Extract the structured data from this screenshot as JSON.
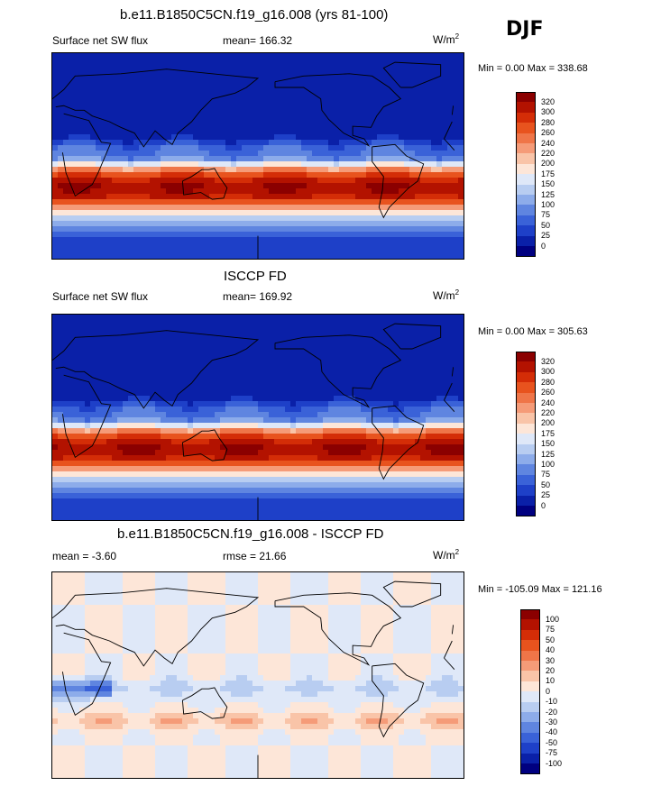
{
  "season": "DJF",
  "panels": [
    {
      "id": "model",
      "title": "b.e11.B1850C5CN.f19_g16.008 (yrs 81-100)",
      "left_label": "Surface net SW flux",
      "center_label": "mean= 166.32",
      "units": "W/m",
      "units_sup": "2",
      "minmax": "Min =   0.00 Max = 338.68",
      "colorbar_labels": [
        "320",
        "300",
        "280",
        "260",
        "240",
        "220",
        "200",
        "175",
        "150",
        "125",
        "100",
        "75",
        "50",
        "25",
        "0"
      ],
      "colorbar_colors": [
        "#8b0000",
        "#b31200",
        "#d42d07",
        "#e8531e",
        "#ef7548",
        "#f59b78",
        "#f9c4a8",
        "#fde6d8",
        "#dfe8f8",
        "#b8cdf1",
        "#8dacea",
        "#5f85e0",
        "#3a62d8",
        "#1e40c8",
        "#0a20a8",
        "#000080"
      ]
    },
    {
      "id": "obs",
      "title": "ISCCP FD",
      "left_label": "Surface net SW flux",
      "center_label": "mean= 169.92",
      "units": "W/m",
      "units_sup": "2",
      "minmax": "Min =   0.00 Max = 305.63",
      "colorbar_labels": [
        "320",
        "300",
        "280",
        "260",
        "240",
        "220",
        "200",
        "175",
        "150",
        "125",
        "100",
        "75",
        "50",
        "25",
        "0"
      ],
      "colorbar_colors": [
        "#8b0000",
        "#b31200",
        "#d42d07",
        "#e8531e",
        "#ef7548",
        "#f59b78",
        "#f9c4a8",
        "#fde6d8",
        "#dfe8f8",
        "#b8cdf1",
        "#8dacea",
        "#5f85e0",
        "#3a62d8",
        "#1e40c8",
        "#0a20a8",
        "#000080"
      ]
    },
    {
      "id": "diff",
      "title": "b.e11.B1850C5CN.f19_g16.008 - ISCCP FD",
      "left_label": "mean =  -3.60",
      "center_label": "rmse =  21.66",
      "units": "W/m",
      "units_sup": "2",
      "minmax": "Min = -105.09 Max = 121.16",
      "colorbar_labels": [
        "100",
        "75",
        "50",
        "40",
        "30",
        "20",
        "10",
        "0",
        "-10",
        "-20",
        "-30",
        "-40",
        "-50",
        "-75",
        "-100"
      ],
      "colorbar_colors": [
        "#8b0000",
        "#b31200",
        "#d42d07",
        "#e8531e",
        "#ef7548",
        "#f59b78",
        "#f9c4a8",
        "#fde6d8",
        "#dfe8f8",
        "#b8cdf1",
        "#8dacea",
        "#5f85e0",
        "#3a62d8",
        "#1e40c8",
        "#0a20a8",
        "#000080"
      ]
    }
  ],
  "chart_data": {
    "type": "heatmap",
    "title": "Surface net SW flux DJF",
    "series": [
      {
        "name": "b.e11.B1850C5CN.f19_g16.008 (yrs 81-100)",
        "mean": 166.32,
        "min": 0.0,
        "max": 338.68
      },
      {
        "name": "ISCCP FD",
        "mean": 169.92,
        "min": 0.0,
        "max": 305.63
      },
      {
        "name": "b.e11.B1850C5CN.f19_g16.008 - ISCCP FD",
        "mean": -3.6,
        "rmse": 21.66,
        "min": -105.09,
        "max": 121.16
      }
    ],
    "units": "W/m2"
  }
}
